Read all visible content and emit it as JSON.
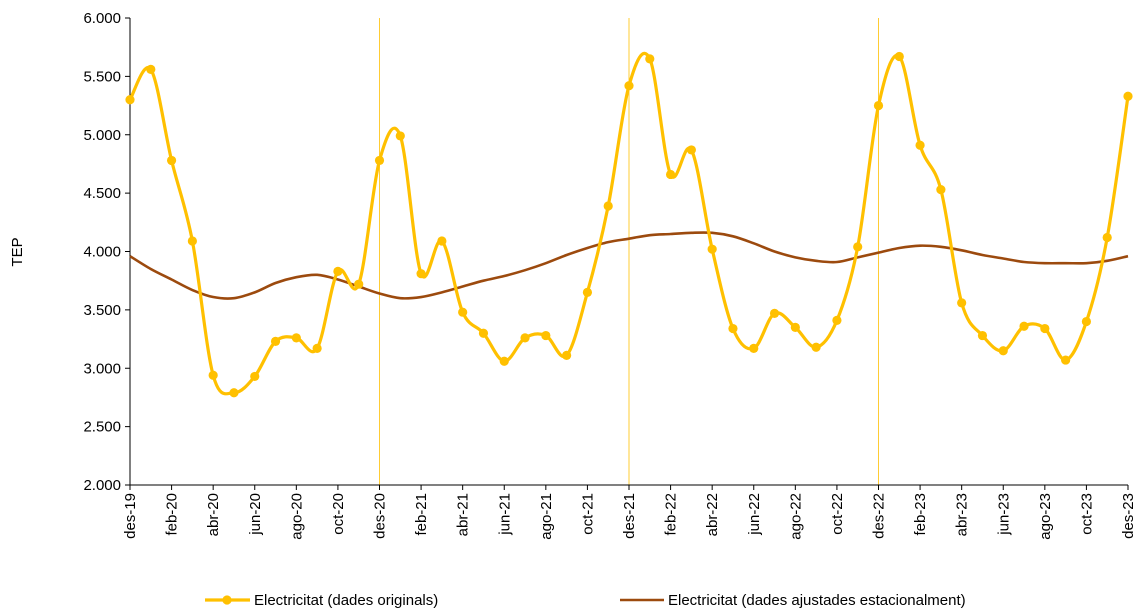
{
  "chart_data": {
    "type": "line",
    "ylabel": "TEP",
    "ylim": [
      2000,
      6000
    ],
    "y_ticks": [
      2000,
      2500,
      3000,
      3500,
      4000,
      4500,
      5000,
      5500,
      6000
    ],
    "y_tick_labels": [
      "2.000",
      "2.500",
      "3.000",
      "3.500",
      "4.000",
      "4.500",
      "5.000",
      "5.500",
      "6.000"
    ],
    "x_tick_labels": [
      "des-19",
      "feb-20",
      "abr-20",
      "jun-20",
      "ago-20",
      "oct-20",
      "des-20",
      "feb-21",
      "abr-21",
      "jun-21",
      "ago-21",
      "oct-21",
      "des-21",
      "feb-22",
      "abr-22",
      "jun-22",
      "ago-22",
      "oct-22",
      "des-22",
      "feb-23",
      "abr-23",
      "jun-23",
      "ago-23",
      "oct-23",
      "des-23"
    ],
    "x_tick_every": 2,
    "year_separators": [
      12,
      24,
      36
    ],
    "legend_position": "bottom",
    "grid": false,
    "series": [
      {
        "name": "Electricitat (dades originals)",
        "color": "#FFC000",
        "marker": "circle",
        "values": [
          5300,
          5560,
          4780,
          4090,
          2940,
          2790,
          2930,
          3230,
          3260,
          3170,
          3830,
          3720,
          4780,
          4990,
          3810,
          4090,
          3480,
          3300,
          3060,
          3260,
          3280,
          3110,
          3650,
          4390,
          5420,
          5650,
          4660,
          4870,
          4020,
          3340,
          3170,
          3470,
          3350,
          3180,
          3410,
          4040,
          5250,
          5670,
          4910,
          4530,
          3560,
          3280,
          3150,
          3360,
          3340,
          3070,
          3400,
          4120,
          5330
        ]
      },
      {
        "name": "Electricitat (dades ajustades estacionalment)",
        "color": "#9C4A0E",
        "marker": "none",
        "values": [
          3960,
          3850,
          3760,
          3670,
          3610,
          3600,
          3650,
          3730,
          3780,
          3800,
          3760,
          3700,
          3640,
          3600,
          3610,
          3650,
          3700,
          3750,
          3790,
          3840,
          3900,
          3970,
          4030,
          4080,
          4110,
          4140,
          4150,
          4160,
          4160,
          4130,
          4070,
          4000,
          3950,
          3920,
          3910,
          3950,
          3990,
          4030,
          4050,
          4040,
          4010,
          3970,
          3940,
          3910,
          3900,
          3900,
          3900,
          3920,
          3960
        ]
      }
    ]
  }
}
